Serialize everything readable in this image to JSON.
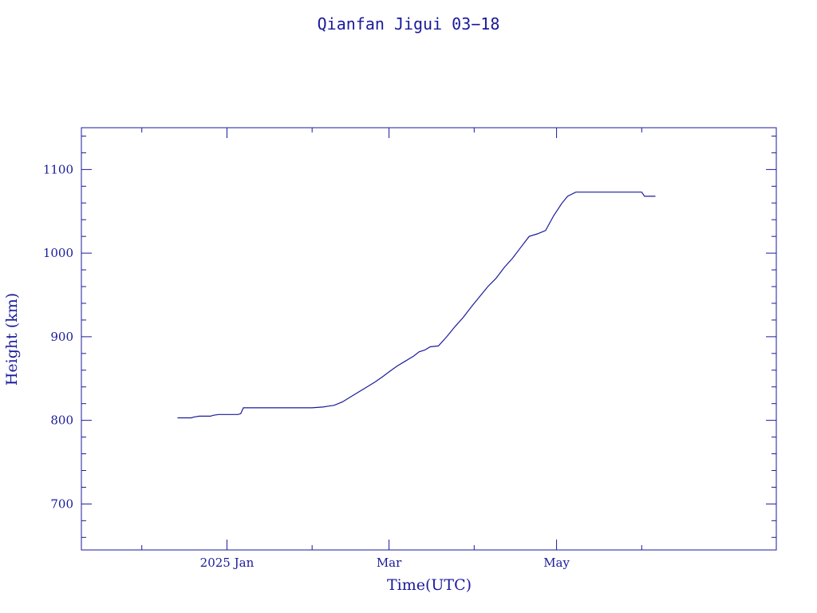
{
  "chart_data": {
    "type": "line",
    "title": "Qianfan Jigui 03−18",
    "xlabel": "Time(UTC)",
    "ylabel": "Height (km)",
    "x_axis": {
      "type": "date",
      "range": [
        "2024-11-09",
        "2025-07-20"
      ],
      "major_ticks": [
        {
          "date": "2025-01-01",
          "label": "2025 Jan"
        },
        {
          "date": "2025-03-01",
          "label": "Mar"
        },
        {
          "date": "2025-05-01",
          "label": "May"
        }
      ],
      "minor_ticks": [
        "2024-12-01",
        "2025-02-01",
        "2025-04-01",
        "2025-06-01"
      ]
    },
    "y_axis": {
      "range": [
        645,
        1150
      ],
      "major_ticks": [
        700,
        800,
        900,
        1000,
        1100
      ],
      "minor_step": 20
    },
    "grid": false,
    "colors": {
      "line": "#1a1a9c",
      "axes": "#1a1a9c",
      "text": "#1a1a9c"
    },
    "series": [
      {
        "points": [
          [
            "2024-12-14",
            803
          ],
          [
            "2024-12-19",
            803
          ],
          [
            "2024-12-20",
            804
          ],
          [
            "2024-12-22",
            805
          ],
          [
            "2024-12-26",
            805
          ],
          [
            "2024-12-27",
            806
          ],
          [
            "2024-12-29",
            807
          ],
          [
            "2025-01-05",
            807
          ],
          [
            "2025-01-06",
            808
          ],
          [
            "2025-01-07",
            815
          ],
          [
            "2025-01-15",
            815
          ],
          [
            "2025-01-25",
            815
          ],
          [
            "2025-02-01",
            815
          ],
          [
            "2025-02-05",
            816
          ],
          [
            "2025-02-07",
            817
          ],
          [
            "2025-02-09",
            818
          ],
          [
            "2025-02-12",
            822
          ],
          [
            "2025-02-15",
            828
          ],
          [
            "2025-02-18",
            834
          ],
          [
            "2025-02-21",
            840
          ],
          [
            "2025-02-24",
            846
          ],
          [
            "2025-02-27",
            853
          ],
          [
            "2025-03-01",
            858
          ],
          [
            "2025-03-04",
            865
          ],
          [
            "2025-03-07",
            871
          ],
          [
            "2025-03-10",
            877
          ],
          [
            "2025-03-12",
            882
          ],
          [
            "2025-03-14",
            884
          ],
          [
            "2025-03-16",
            888
          ],
          [
            "2025-03-19",
            889
          ],
          [
            "2025-03-22",
            900
          ],
          [
            "2025-03-25",
            912
          ],
          [
            "2025-03-28",
            923
          ],
          [
            "2025-03-31",
            936
          ],
          [
            "2025-04-03",
            948
          ],
          [
            "2025-04-06",
            960
          ],
          [
            "2025-04-09",
            970
          ],
          [
            "2025-04-12",
            983
          ],
          [
            "2025-04-15",
            994
          ],
          [
            "2025-04-18",
            1007
          ],
          [
            "2025-04-21",
            1020
          ],
          [
            "2025-04-24",
            1023
          ],
          [
            "2025-04-27",
            1027
          ],
          [
            "2025-04-30",
            1045
          ],
          [
            "2025-05-03",
            1060
          ],
          [
            "2025-05-05",
            1068
          ],
          [
            "2025-05-08",
            1073
          ],
          [
            "2025-05-18",
            1073
          ],
          [
            "2025-05-25",
            1073
          ],
          [
            "2025-06-01",
            1073
          ],
          [
            "2025-06-02",
            1068
          ],
          [
            "2025-06-06",
            1068
          ]
        ]
      }
    ]
  }
}
